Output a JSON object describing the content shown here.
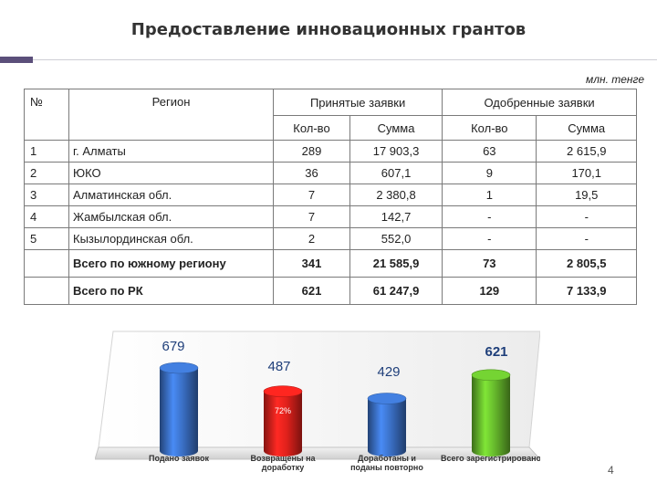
{
  "title": "Предоставление инновационных грантов",
  "unit": "млн. тенге",
  "table": {
    "col_no": "№",
    "col_region": "Регион",
    "group_accepted": "Принятые заявки",
    "group_approved": "Одобренные заявки",
    "sub_count": "Кол-во",
    "sub_sum": "Сумма",
    "rows": [
      {
        "no": "1",
        "region": "г. Алматы",
        "acc_count": "289",
        "acc_sum": "17 903,3",
        "app_count": "63",
        "app_sum": "2 615,9"
      },
      {
        "no": "2",
        "region": "ЮКО",
        "acc_count": "36",
        "acc_sum": "607,1",
        "app_count": "9",
        "app_sum": "170,1"
      },
      {
        "no": "3",
        "region": "Алматинская обл.",
        "acc_count": "7",
        "acc_sum": "2 380,8",
        "app_count": "1",
        "app_sum": "19,5"
      },
      {
        "no": "4",
        "region": "Жамбылская обл.",
        "acc_count": "7",
        "acc_sum": "142,7",
        "app_count": "-",
        "app_sum": "-"
      },
      {
        "no": "5",
        "region": "Кызылординская обл.",
        "acc_count": "2",
        "acc_sum": "552,0",
        "app_count": "-",
        "app_sum": "-"
      }
    ],
    "totals": [
      {
        "label": "Всего по южному региону",
        "acc_count": "341",
        "acc_sum": "21 585,9",
        "app_count": "73",
        "app_sum": "2 805,5"
      },
      {
        "label": "Всего по РК",
        "acc_count": "621",
        "acc_sum": "61 247,9",
        "app_count": "129",
        "app_sum": "7 133,9"
      }
    ]
  },
  "chart_data": {
    "type": "bar",
    "categories": [
      "Подано заявок",
      "Возвращены на доработку",
      "Доработаны и поданы повторно",
      "Всего зарегистрировано"
    ],
    "values": [
      679,
      487,
      429,
      621
    ],
    "value_labels": [
      "679",
      "487",
      "429",
      "621"
    ],
    "annotation": "72%",
    "colors": [
      "#3a6fc4",
      "#e0211c",
      "#3a6fc4",
      "#66b82c"
    ]
  },
  "page_number": "4"
}
